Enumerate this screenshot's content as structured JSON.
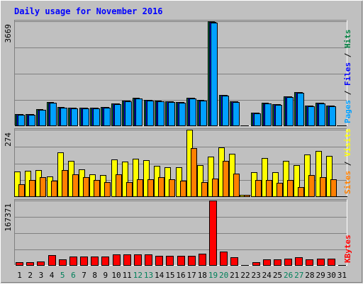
{
  "chart_data": {
    "type": "bar",
    "title": "Daily usage for November 2016",
    "days": [
      "1",
      "2",
      "3",
      "4",
      "5",
      "6",
      "7",
      "8",
      "9",
      "10",
      "11",
      "12",
      "13",
      "14",
      "15",
      "16",
      "17",
      "18",
      "19",
      "20",
      "21",
      "22",
      "23",
      "24",
      "25",
      "26",
      "27",
      "28",
      "29",
      "30",
      "31"
    ],
    "weekend_days": [
      "5",
      "6",
      "12",
      "13",
      "19",
      "20",
      "26",
      "27"
    ],
    "panels": [
      {
        "id": "pages-files-hits",
        "max_label": "3669",
        "ymax": 3669,
        "legend": [
          {
            "text": "Pages",
            "color": "#00a0ff"
          },
          {
            "text": " / ",
            "color": "#000000"
          },
          {
            "text": "Files",
            "color": "#0000ff"
          },
          {
            "text": " / ",
            "color": "#000000"
          },
          {
            "text": "Hits",
            "color": "#008040"
          }
        ],
        "series": [
          {
            "name": "Hits",
            "color": "#008040",
            "values": [
              420,
              420,
              590,
              840,
              660,
              650,
              650,
              650,
              680,
              800,
              900,
              980,
              920,
              890,
              880,
              850,
              1000,
              910,
              3669,
              1100,
              870,
              0,
              480,
              810,
              780,
              1050,
              1190,
              720,
              830,
              730,
              0
            ]
          },
          {
            "name": "Files",
            "color": "#0000ff",
            "values": [
              410,
              410,
              580,
              830,
              650,
              640,
              640,
              640,
              670,
              790,
              890,
              970,
              910,
              880,
              870,
              840,
              990,
              900,
              3650,
              1090,
              860,
              0,
              470,
              800,
              770,
              1040,
              1180,
              710,
              820,
              720,
              0
            ]
          },
          {
            "name": "Pages",
            "color": "#00a0ff",
            "values": [
              395,
              395,
              565,
              815,
              635,
              625,
              625,
              625,
              655,
              775,
              875,
              955,
              895,
              865,
              855,
              825,
              975,
              885,
              3620,
              1075,
              845,
              20,
              455,
              785,
              755,
              1025,
              1165,
              695,
              805,
              705,
              0
            ]
          }
        ]
      },
      {
        "id": "sites-visits",
        "max_label": "274",
        "ymax": 274,
        "legend": [
          {
            "text": "Sites",
            "color": "#ff8000"
          },
          {
            "text": " / ",
            "color": "#000000"
          },
          {
            "text": "Visits",
            "color": "#ffff00"
          }
        ],
        "series": [
          {
            "name": "Visits",
            "color": "#ffff00",
            "values": [
              105,
              108,
              111,
              85,
              183,
              148,
              112,
              92,
              90,
              152,
              145,
              155,
              150,
              128,
              120,
              122,
              274,
              130,
              165,
              203,
              177,
              10,
              102,
              160,
              102,
              148,
              130,
              173,
              188,
              168,
              0
            ]
          },
          {
            "name": "Sites",
            "color": "#ff8000",
            "values": [
              52,
              70,
              80,
              65,
              111,
              93,
              80,
              68,
              62,
              92,
              62,
              72,
              72,
              82,
              72,
              65,
              200,
              60,
              75,
              148,
              95,
              8,
              68,
              70,
              57,
              70,
              40,
              88,
              80,
              72,
              0
            ]
          }
        ]
      },
      {
        "id": "kbytes",
        "max_label": "167371",
        "ymax": 167371,
        "legend": [
          {
            "text": "KBytes",
            "color": "#ff0000"
          }
        ],
        "series": [
          {
            "name": "KBytes",
            "color": "#ff0000",
            "values": [
              8500,
              8500,
              11000,
              27000,
              17000,
              23000,
              23000,
              23000,
              23000,
              29000,
              29000,
              29000,
              29000,
              26000,
              26000,
              25000,
              25000,
              31000,
              167371,
              36000,
              21000,
              0,
              10000,
              16000,
              16000,
              18000,
              21000,
              17000,
              18000,
              18000,
              0
            ]
          }
        ]
      }
    ]
  }
}
